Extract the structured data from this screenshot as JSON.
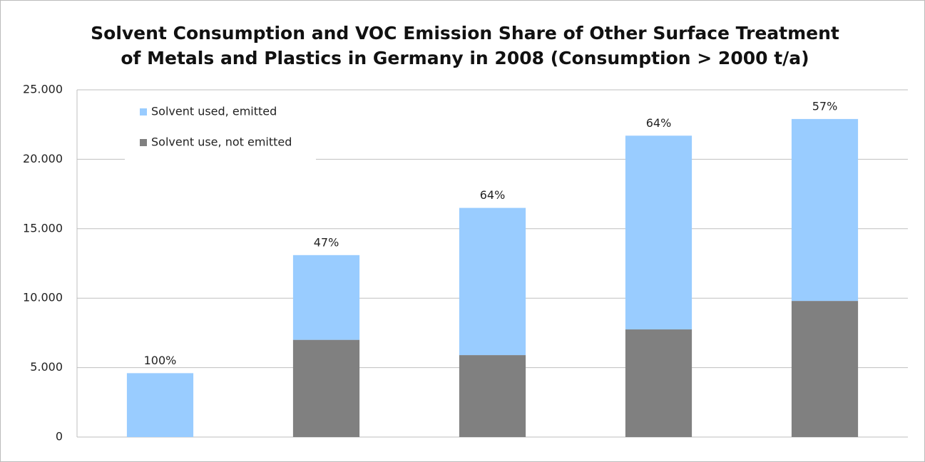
{
  "chart_data": {
    "type": "stacked_bar",
    "title": [
      "Solvent Consumption and VOC Emission Share of Other Surface Treatment",
      "of Metals and Plastics in Germany in 2008 (Consumption > 2000 t/a)"
    ],
    "categories": [
      null,
      null,
      null,
      null,
      null
    ],
    "series": [
      {
        "name": "Solvent use, not emitted",
        "color": "#808080",
        "values": [
          0,
          7000,
          5900,
          7750,
          9800
        ]
      },
      {
        "name": "Solvent used, emitted",
        "color": "#99ccff",
        "values": [
          4600,
          6100,
          10600,
          13950,
          13100
        ]
      }
    ],
    "bar_labels": [
      "100%",
      "47%",
      "64%",
      "64%",
      "57%"
    ],
    "ylim": [
      0,
      25000
    ],
    "yticks": [
      0,
      {
        "value": 5000,
        "label": "5.000"
      },
      {
        "value": 10000,
        "label": "10.000"
      },
      {
        "value": 15000,
        "label": "15.000"
      },
      {
        "value": 20000,
        "label": "20.000"
      },
      {
        "value": 25000,
        "label": "25.000"
      }
    ],
    "grid": true,
    "legend": "upper left"
  }
}
